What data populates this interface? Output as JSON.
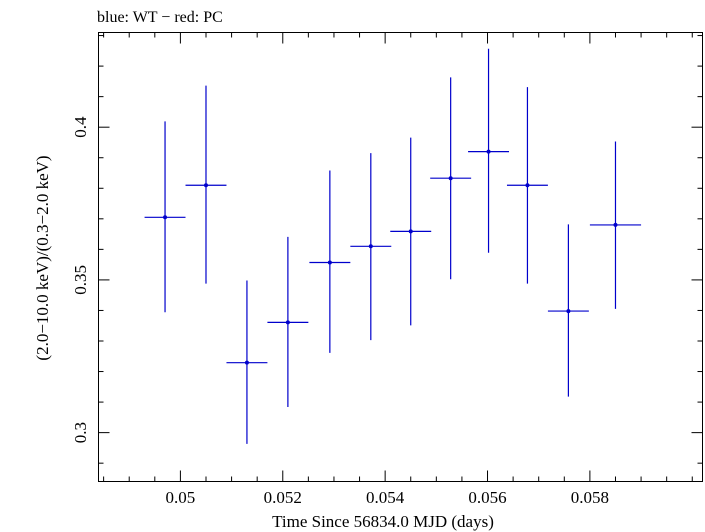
{
  "chart_data": {
    "type": "scatter",
    "title": "blue: WT − red: PC",
    "xlabel": "Time Since 56834.0 MJD (days)",
    "ylabel": "(2.0−10.0 keV)/(0.3−2.0 keV)",
    "xlim": [
      0.0484,
      0.0602
    ],
    "ylim": [
      0.284,
      0.431
    ],
    "x_ticks": [
      "0.05",
      "0.052",
      "0.054",
      "0.056",
      "0.058"
    ],
    "x_tick_values": [
      0.05,
      0.052,
      0.054,
      0.056,
      0.058
    ],
    "y_ticks": [
      "0.3",
      "0.35",
      "0.4"
    ],
    "y_tick_values": [
      0.3,
      0.35,
      0.4
    ],
    "grid": false,
    "series": [
      {
        "color": "#0000cc",
        "points": [
          {
            "x": 0.0497,
            "xerr": 0.0004,
            "y": 0.3705,
            "ylo": 0.3394,
            "yhi": 0.4019
          },
          {
            "x": 0.0505,
            "xerr": 0.0004,
            "y": 0.381,
            "ylo": 0.3488,
            "yhi": 0.4136
          },
          {
            "x": 0.0513,
            "xerr": 0.0004,
            "y": 0.3229,
            "ylo": 0.2963,
            "yhi": 0.3498
          },
          {
            "x": 0.0521,
            "xerr": 0.0004,
            "y": 0.3361,
            "ylo": 0.3084,
            "yhi": 0.3641
          },
          {
            "x": 0.05292,
            "xerr": 0.0004,
            "y": 0.3557,
            "ylo": 0.3261,
            "yhi": 0.3858
          },
          {
            "x": 0.05372,
            "xerr": 0.0004,
            "y": 0.361,
            "ylo": 0.3303,
            "yhi": 0.3915
          },
          {
            "x": 0.0545,
            "xerr": 0.0004,
            "y": 0.3659,
            "ylo": 0.3351,
            "yhi": 0.3966
          },
          {
            "x": 0.05528,
            "xerr": 0.0004,
            "y": 0.3833,
            "ylo": 0.3502,
            "yhi": 0.4163
          },
          {
            "x": 0.05602,
            "xerr": 0.0004,
            "y": 0.392,
            "ylo": 0.3589,
            "yhi": 0.4257
          },
          {
            "x": 0.05678,
            "xerr": 0.0004,
            "y": 0.381,
            "ylo": 0.3488,
            "yhi": 0.4131
          },
          {
            "x": 0.05758,
            "xerr": 0.0004,
            "y": 0.3398,
            "ylo": 0.3118,
            "yhi": 0.3682
          },
          {
            "x": 0.0585,
            "xerr": 0.0005,
            "y": 0.368,
            "ylo": 0.3405,
            "yhi": 0.3953
          }
        ]
      }
    ]
  }
}
